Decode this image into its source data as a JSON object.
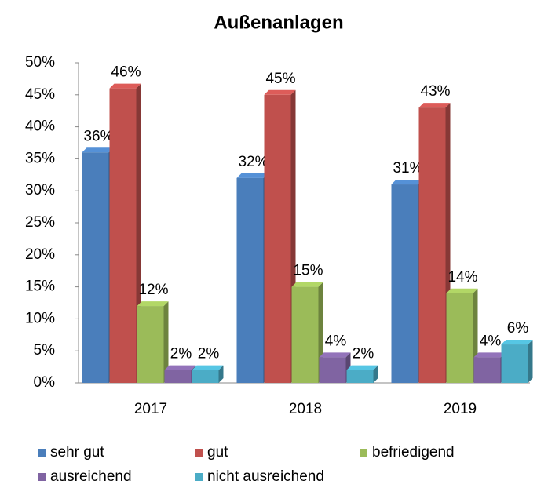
{
  "chart_data": {
    "type": "bar",
    "title": "Außenanlagen",
    "categories": [
      "2017",
      "2018",
      "2019"
    ],
    "series": [
      {
        "name": "sehr gut",
        "color": "#4a7ebb",
        "values": [
          36,
          32,
          31
        ],
        "value_labels": [
          "36%",
          "32%",
          "31%"
        ]
      },
      {
        "name": "gut",
        "color": "#c0504d",
        "values": [
          46,
          45,
          43
        ],
        "value_labels": [
          "46%",
          "45%",
          "43%"
        ]
      },
      {
        "name": "befriedigend",
        "color": "#9bbb59",
        "values": [
          12,
          15,
          14
        ],
        "value_labels": [
          "12%",
          "15%",
          "14%"
        ]
      },
      {
        "name": "ausreichend",
        "color": "#8064a2",
        "values": [
          2,
          4,
          4
        ],
        "value_labels": [
          "2%",
          "4%",
          "4%"
        ]
      },
      {
        "name": "nicht ausreichend",
        "color": "#4bacc6",
        "values": [
          2,
          2,
          6
        ],
        "value_labels": [
          "2%",
          "2%",
          "6%"
        ]
      }
    ],
    "ylim": [
      0,
      50
    ],
    "yticks": [
      {
        "value": 0,
        "label": "0%"
      },
      {
        "value": 5,
        "label": "5%"
      },
      {
        "value": 10,
        "label": "10%"
      },
      {
        "value": 15,
        "label": "15%"
      },
      {
        "value": 20,
        "label": "20%"
      },
      {
        "value": 25,
        "label": "25%"
      },
      {
        "value": 30,
        "label": "30%"
      },
      {
        "value": 35,
        "label": "35%"
      },
      {
        "value": 40,
        "label": "40%"
      },
      {
        "value": 45,
        "label": "45%"
      },
      {
        "value": 50,
        "label": "50%"
      }
    ],
    "grid": false,
    "legend": "bottom"
  }
}
